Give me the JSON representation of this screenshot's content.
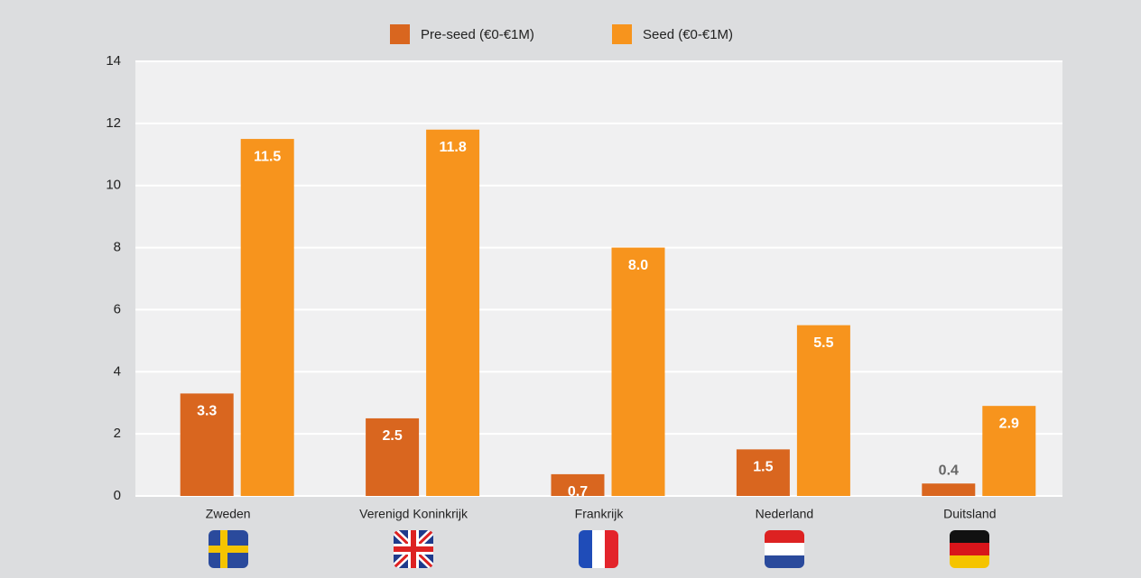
{
  "chart_data": {
    "type": "bar",
    "categories": [
      "Zweden",
      "Verenigd Koninkrijk",
      "Frankrijk",
      "Nederland",
      "Duitsland"
    ],
    "series": [
      {
        "name": "Pre-seed (€0-€1M)",
        "color": "#d9661f",
        "values": [
          3.3,
          2.5,
          0.7,
          1.5,
          0.4
        ],
        "value_labels": [
          "3.3",
          "2.5",
          "0.7",
          "1.5",
          "0.4"
        ]
      },
      {
        "name": "Seed (€0-€1M)",
        "color": "#f7941d",
        "values": [
          11.5,
          11.8,
          8.0,
          5.5,
          2.9
        ],
        "value_labels": [
          "11.5",
          "11.8",
          "8.0",
          "5.5",
          "2.9"
        ]
      }
    ],
    "ylim": [
      0,
      14
    ],
    "yticks": [
      0,
      2,
      4,
      6,
      8,
      10,
      12,
      14
    ],
    "grid": true,
    "legend": "top"
  }
}
